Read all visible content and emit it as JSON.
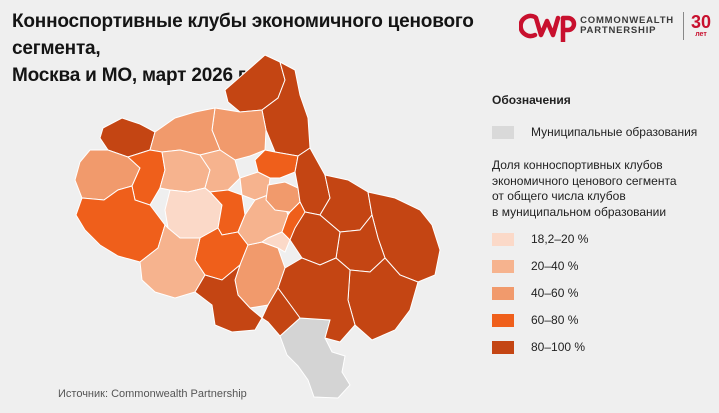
{
  "title": {
    "line1": "Конноспортивные клубы экономичного ценового сегмента,",
    "line2": "Москва и МО, март 2026 г."
  },
  "brand": {
    "line1": "COMMONWEALTH",
    "line2": "PARTNERSHIP",
    "years": "30",
    "years_label": "лет",
    "logo_color": "#c8102e"
  },
  "legend": {
    "heading": "Обозначения",
    "municipal_label": "Муниципальные образования",
    "municipal_color": "#d9d9d9",
    "description_lines": [
      "Доля конноспортивных клубов",
      "экономичного ценового сегмента",
      "от общего числа клубов",
      "в муниципальном образовании"
    ],
    "bins": [
      {
        "label": "18,2–20 %",
        "color": "#fbd9c8"
      },
      {
        "label": "20–40 %",
        "color": "#f6b38e"
      },
      {
        "label": "40–60 %",
        "color": "#f19a6c"
      },
      {
        "label": "60–80 %",
        "color": "#ef5f1b"
      },
      {
        "label": "80–100 %",
        "color": "#c44513"
      }
    ]
  },
  "source": "Источник: Commonwealth Partnership"
}
